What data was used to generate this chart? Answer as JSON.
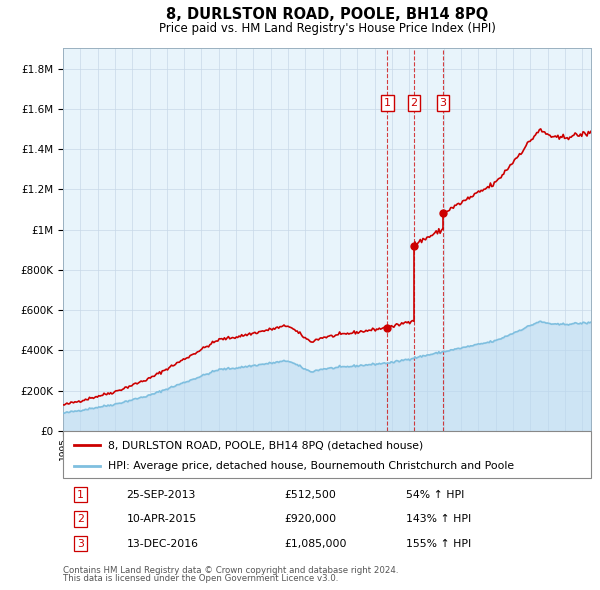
{
  "title": "8, DURLSTON ROAD, POOLE, BH14 8PQ",
  "subtitle": "Price paid vs. HM Land Registry's House Price Index (HPI)",
  "legend_line1": "8, DURLSTON ROAD, POOLE, BH14 8PQ (detached house)",
  "legend_line2": "HPI: Average price, detached house, Bournemouth Christchurch and Poole",
  "footer1": "Contains HM Land Registry data © Crown copyright and database right 2024.",
  "footer2": "This data is licensed under the Open Government Licence v3.0.",
  "transactions": [
    {
      "label": "1",
      "date": "25-SEP-2013",
      "price": 512500,
      "price_str": "£512,500",
      "pct": "54% ↑ HPI",
      "year": 2013.73
    },
    {
      "label": "2",
      "date": "10-APR-2015",
      "price": 920000,
      "price_str": "£920,000",
      "pct": "143% ↑ HPI",
      "year": 2015.27
    },
    {
      "label": "3",
      "date": "13-DEC-2016",
      "price": 1085000,
      "price_str": "£1,085,000",
      "pct": "155% ↑ HPI",
      "year": 2016.95
    }
  ],
  "hpi_color": "#7fbfdf",
  "price_color": "#cc0000",
  "vline_color": "#cc0000",
  "chart_bg": "#e8f4fb",
  "grid_color": "#c8d8e8",
  "ylim": [
    0,
    1900000
  ],
  "xlim_start": 1995.0,
  "xlim_end": 2025.5
}
